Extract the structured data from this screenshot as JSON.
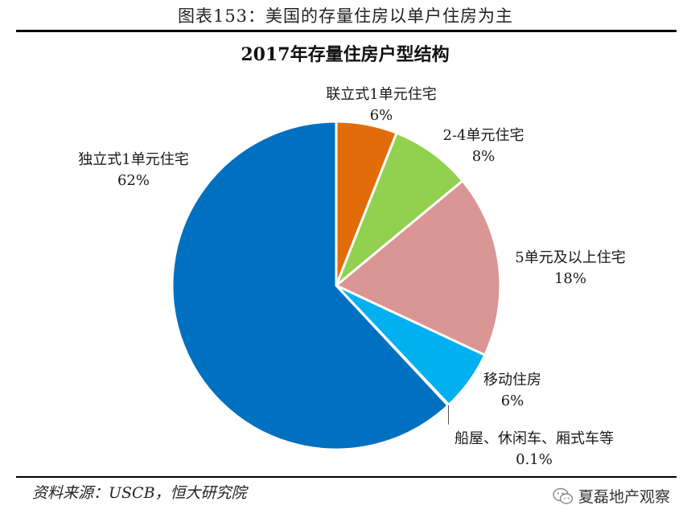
{
  "figure_caption": "图表153：美国的存量住房以单户住房为主",
  "chart_data": {
    "type": "pie",
    "title": "2017年存量住房户型结构",
    "slices": [
      {
        "label": "联立式1单元住宅",
        "value_label": "6%",
        "value": 6,
        "color": "#E36C0A"
      },
      {
        "label": "2-4单元住宅",
        "value_label": "8%",
        "value": 8,
        "color": "#92D050"
      },
      {
        "label": "5单元及以上住宅",
        "value_label": "18%",
        "value": 18,
        "color": "#D99694"
      },
      {
        "label": "移动住房",
        "value_label": "6%",
        "value": 6,
        "color": "#00B0F0"
      },
      {
        "label": "船屋、休闲车、厢式车等",
        "value_label": "0.1%",
        "value": 0.1,
        "color": "#C0C0C0"
      },
      {
        "label": "独立式1单元住宅",
        "value_label": "62%",
        "value": 62,
        "color": "#0070C0"
      }
    ],
    "legend": "none"
  },
  "source": "资料来源：USCB，恒大研究院",
  "watermark": {
    "icon": "wechat-icon",
    "text": "夏磊地产观察"
  }
}
